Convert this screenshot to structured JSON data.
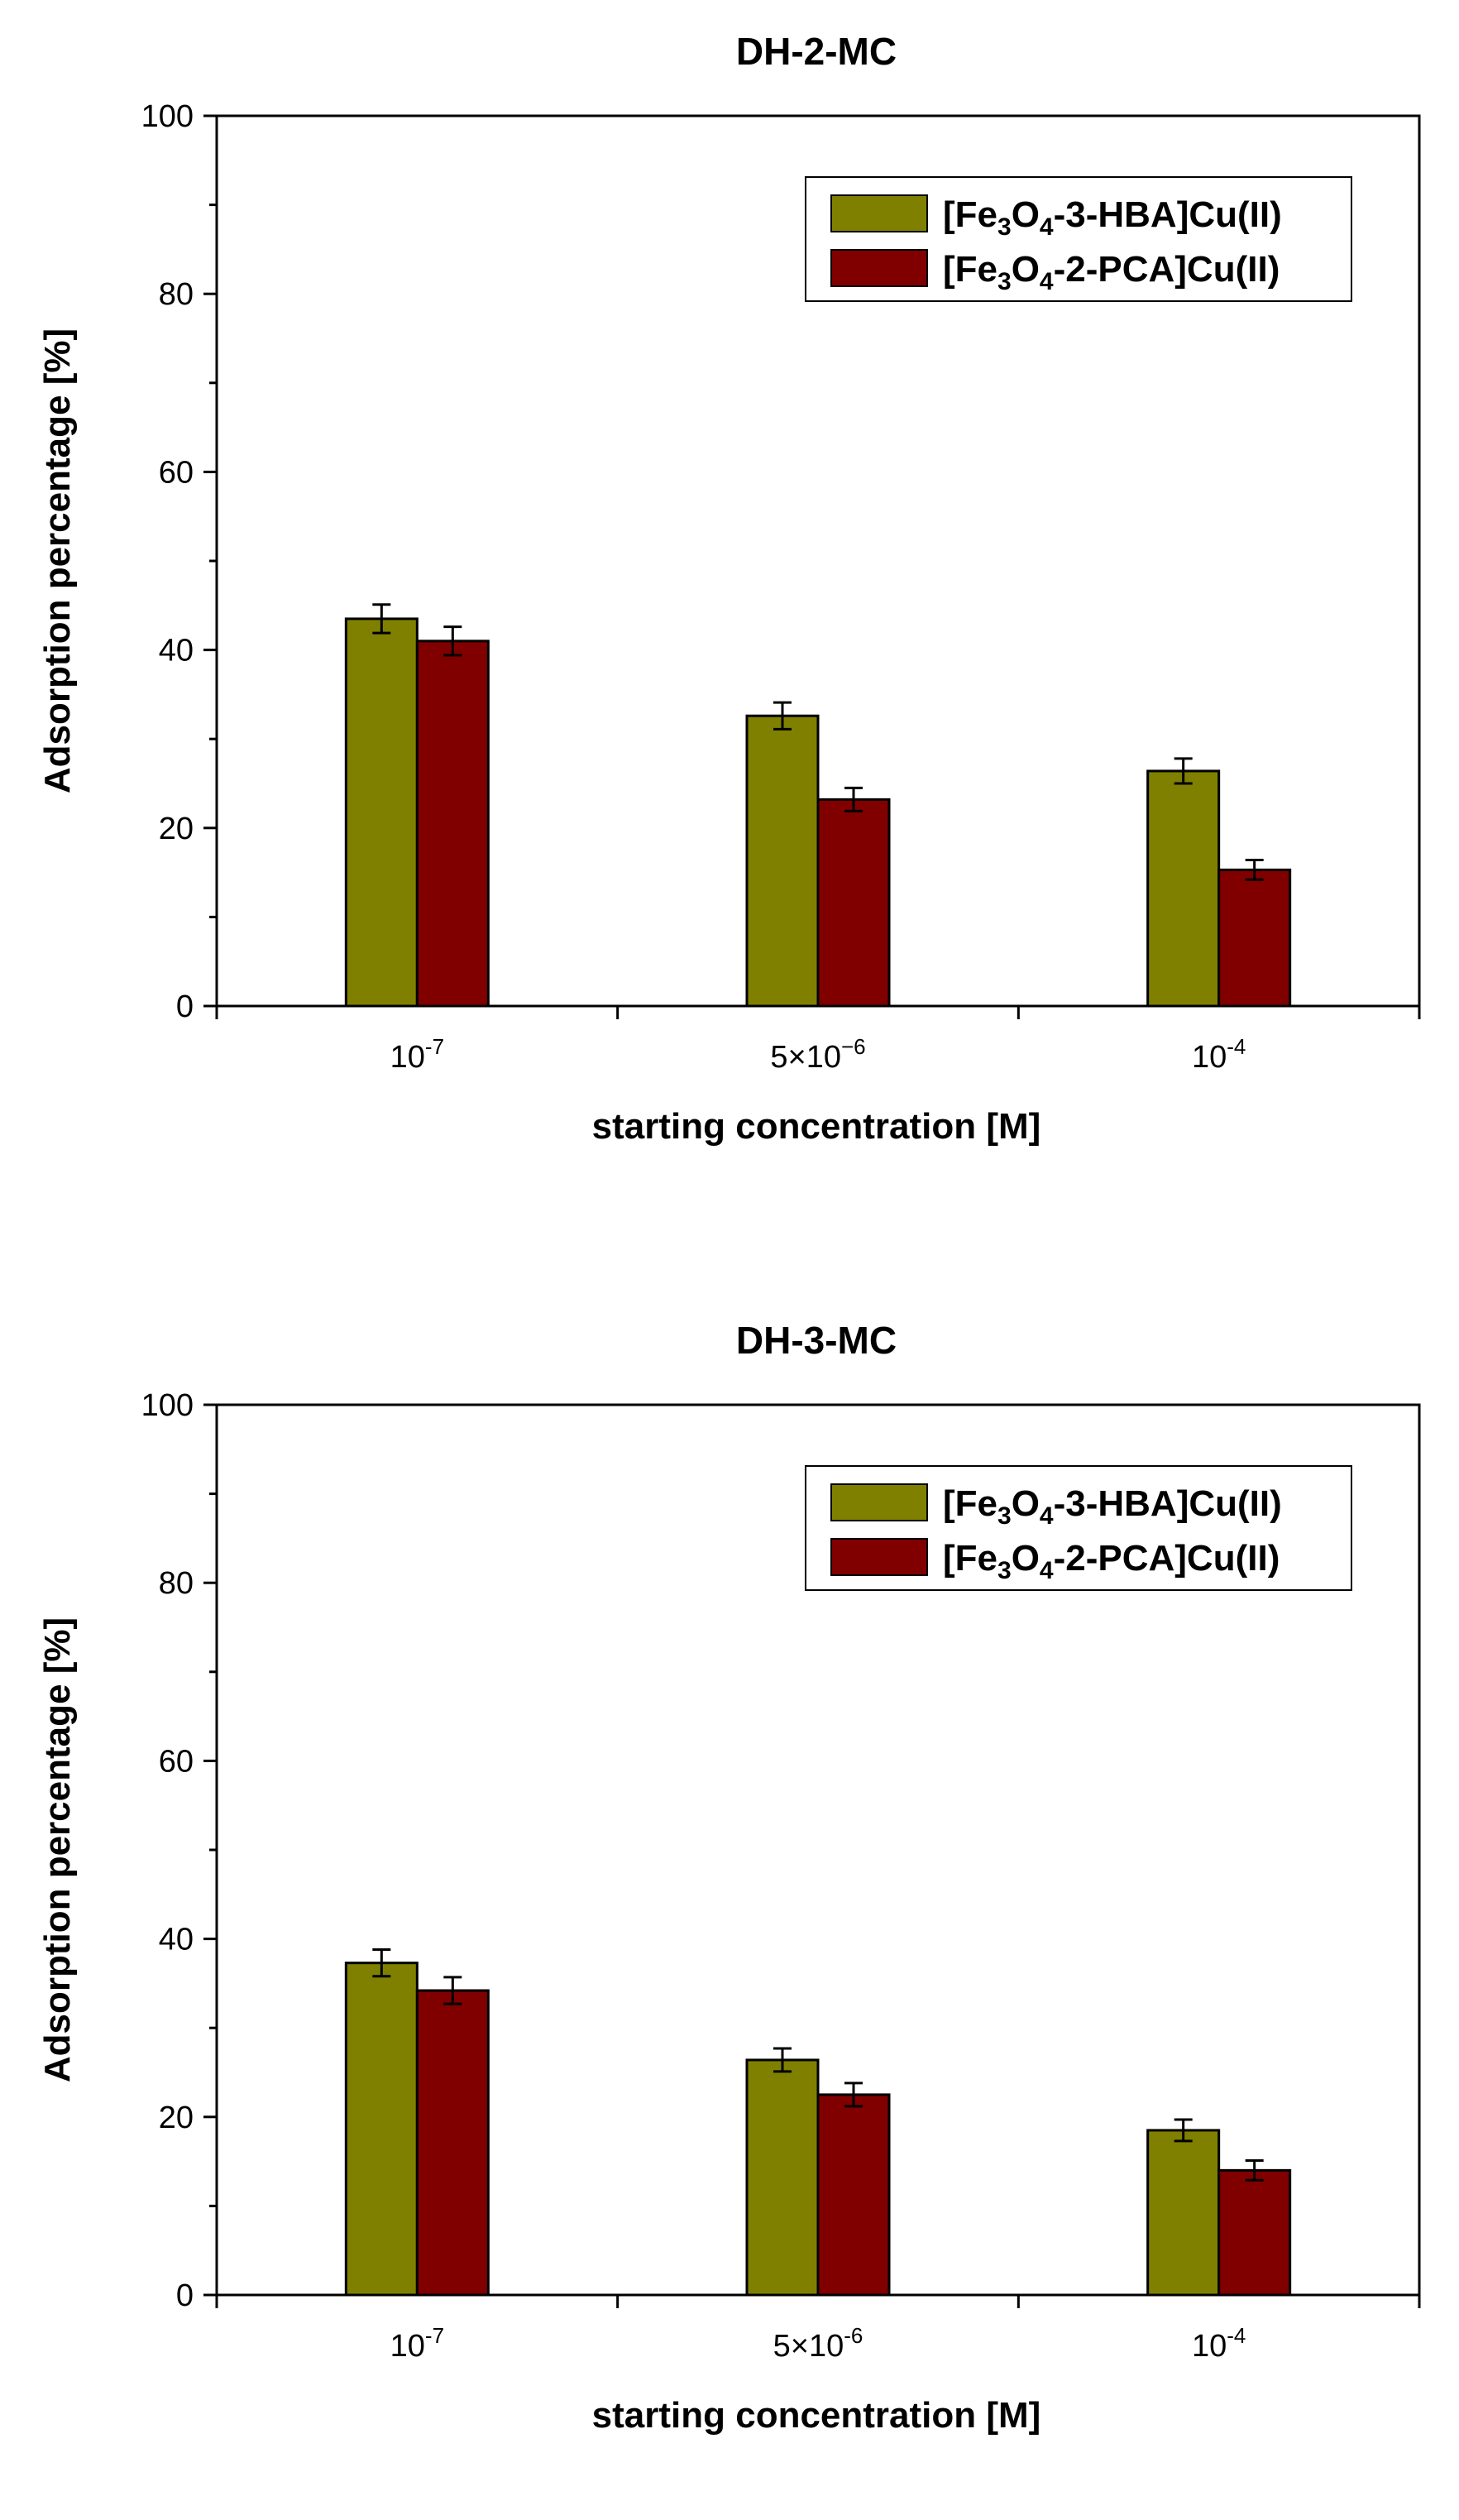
{
  "chart_data": [
    {
      "type": "bar",
      "title": "DH-2-MC",
      "xlabel": "starting concentration [M]",
      "ylabel": "Adsorption percentage [%]",
      "ylim": [
        0,
        100
      ],
      "yticks": [
        0,
        20,
        40,
        60,
        80,
        100
      ],
      "categories": [
        "10-7",
        "5×10-6",
        "10-4"
      ],
      "category_labels": [
        {
          "base": "10",
          "exp": "-7"
        },
        {
          "base": "5×10",
          "exp": "−6"
        },
        {
          "base": "10",
          "exp": "-4"
        }
      ],
      "series": [
        {
          "name": "[Fe3O4-3-HBA]Cu(II)",
          "color": "#808000",
          "values": [
            43.5,
            32.6,
            26.4
          ],
          "errors": [
            1.6,
            1.5,
            1.4
          ]
        },
        {
          "name": "[Fe3O4-2-PCA]Cu(II)",
          "color": "#800000",
          "values": [
            41.0,
            23.2,
            15.3
          ],
          "errors": [
            1.6,
            1.3,
            1.1
          ]
        }
      ],
      "legend": {
        "position": "top-right",
        "entries": [
          {
            "prefix": "[Fe",
            "sub1": "3",
            "mid": "O",
            "sub2": "4",
            "suffix": "-3-HBA]Cu(II)"
          },
          {
            "prefix": "[Fe",
            "sub1": "3",
            "mid": "O",
            "sub2": "4",
            "suffix": "-2-PCA]Cu(II)"
          }
        ]
      }
    },
    {
      "type": "bar",
      "title": "DH-3-MC",
      "xlabel": "starting concentration [M]",
      "ylabel": "Adsorption percentage [%]",
      "ylim": [
        0,
        100
      ],
      "yticks": [
        0,
        20,
        40,
        60,
        80,
        100
      ],
      "categories": [
        "10-7",
        "5×10-6",
        "10-4"
      ],
      "category_labels": [
        {
          "base": "10",
          "exp": "-7"
        },
        {
          "base": "5×10",
          "exp": "-6"
        },
        {
          "base": "10",
          "exp": "-4"
        }
      ],
      "series": [
        {
          "name": "[Fe3O4-3-HBA]Cu(II)",
          "color": "#808000",
          "values": [
            37.3,
            26.4,
            18.5
          ],
          "errors": [
            1.5,
            1.3,
            1.2
          ]
        },
        {
          "name": "[Fe3O4-2-PCA]Cu(II)",
          "color": "#800000",
          "values": [
            34.2,
            22.5,
            14.0
          ],
          "errors": [
            1.5,
            1.3,
            1.1
          ]
        }
      ],
      "legend": {
        "position": "top-right",
        "entries": [
          {
            "prefix": "[Fe",
            "sub1": "3",
            "mid": "O",
            "sub2": "4",
            "suffix": "-3-HBA]Cu(II)"
          },
          {
            "prefix": "[Fe",
            "sub1": "3",
            "mid": "O",
            "sub2": "4",
            "suffix": "-2-PCA]Cu(II)"
          }
        ]
      }
    }
  ]
}
